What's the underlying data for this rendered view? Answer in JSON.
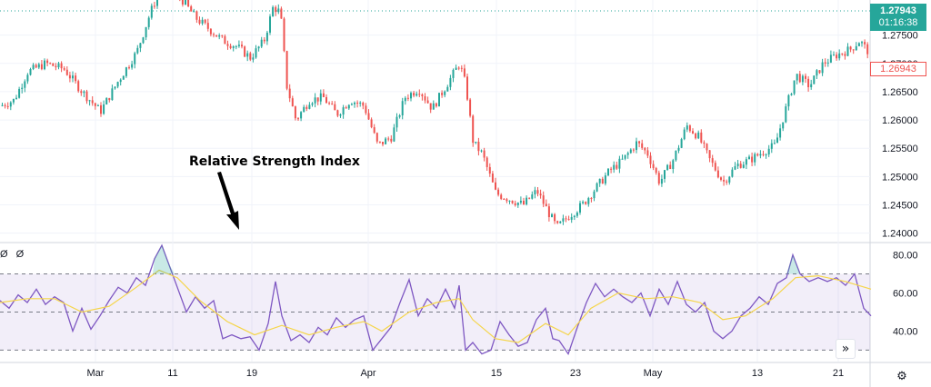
{
  "chart_data": [
    {
      "type": "candlestick",
      "pane": "price",
      "y_ticks": [
        "1.27500",
        "1.27000",
        "1.26500",
        "1.26000",
        "1.25500",
        "1.25000",
        "1.24500",
        "1.24000"
      ],
      "ylim": [
        1.2385,
        1.2812
      ],
      "x_ticks": [
        "Mar",
        "11",
        "19",
        "Apr",
        "15",
        "23",
        "May",
        "13",
        "21"
      ],
      "current_price": "1.27943",
      "countdown": "01:16:38",
      "secondary_price": "1.26943",
      "up_color": "#26a69a",
      "down_color": "#ef5350",
      "price_anchors": [
        [
          0,
          1.2625
        ],
        [
          15,
          1.2635
        ],
        [
          30,
          1.2685
        ],
        [
          50,
          1.27
        ],
        [
          70,
          1.269
        ],
        [
          90,
          1.265
        ],
        [
          110,
          1.2615
        ],
        [
          130,
          1.267
        ],
        [
          150,
          1.272
        ],
        [
          165,
          1.279
        ],
        [
          175,
          1.283
        ],
        [
          190,
          1.283
        ],
        [
          200,
          1.2812
        ],
        [
          215,
          1.278
        ],
        [
          230,
          1.276
        ],
        [
          245,
          1.274
        ],
        [
          260,
          1.273
        ],
        [
          275,
          1.271
        ],
        [
          290,
          1.274
        ],
        [
          300,
          1.28
        ],
        [
          308,
          1.279
        ],
        [
          315,
          1.266
        ],
        [
          325,
          1.26
        ],
        [
          340,
          1.2635
        ],
        [
          355,
          1.264
        ],
        [
          370,
          1.261
        ],
        [
          385,
          1.2635
        ],
        [
          400,
          1.2625
        ],
        [
          415,
          1.2555
        ],
        [
          430,
          1.257
        ],
        [
          445,
          1.264
        ],
        [
          460,
          1.2655
        ],
        [
          475,
          1.262
        ],
        [
          490,
          1.266
        ],
        [
          505,
          1.27
        ],
        [
          512,
          1.266
        ],
        [
          520,
          1.256
        ],
        [
          530,
          1.254
        ],
        [
          545,
          1.247
        ],
        [
          560,
          1.246
        ],
        [
          575,
          1.245
        ],
        [
          590,
          1.2475
        ],
        [
          605,
          1.243
        ],
        [
          612,
          1.241
        ],
        [
          625,
          1.243
        ],
        [
          640,
          1.245
        ],
        [
          655,
          1.248
        ],
        [
          670,
          1.251
        ],
        [
          685,
          1.253
        ],
        [
          700,
          1.256
        ],
        [
          712,
          1.254
        ],
        [
          725,
          1.249
        ],
        [
          740,
          1.253
        ],
        [
          755,
          1.259
        ],
        [
          768,
          1.257
        ],
        [
          780,
          1.253
        ],
        [
          795,
          1.249
        ],
        [
          810,
          1.252
        ],
        [
          825,
          1.253
        ],
        [
          840,
          1.2545
        ],
        [
          852,
          1.2555
        ],
        [
          862,
          1.261
        ],
        [
          875,
          1.268
        ],
        [
          890,
          1.266
        ],
        [
          905,
          1.27
        ],
        [
          920,
          1.2715
        ],
        [
          935,
          1.2725
        ],
        [
          945,
          1.274
        ],
        [
          955,
          1.272
        ]
      ]
    },
    {
      "type": "line",
      "pane": "rsi",
      "indicator_values": [
        "Ø",
        "Ø"
      ],
      "y_ticks": [
        "80.00",
        "60.00",
        "40.00"
      ],
      "ylim": [
        24,
        86
      ],
      "bands": [
        70,
        50,
        30
      ],
      "annotation": "Relative Strength Index",
      "series": [
        {
          "color": "#7e57c2",
          "points": [
            [
              0,
              56
            ],
            [
              10,
              52
            ],
            [
              20,
              59
            ],
            [
              30,
              55
            ],
            [
              40,
              62
            ],
            [
              50,
              54
            ],
            [
              60,
              58
            ],
            [
              70,
              55
            ],
            [
              80,
              40
            ],
            [
              90,
              52
            ],
            [
              100,
              41
            ],
            [
              110,
              48
            ],
            [
              120,
              56
            ],
            [
              130,
              63
            ],
            [
              140,
              60
            ],
            [
              150,
              68
            ],
            [
              160,
              64
            ],
            [
              170,
              78
            ],
            [
              178,
              85
            ],
            [
              185,
              76
            ],
            [
              195,
              63
            ],
            [
              205,
              50
            ],
            [
              215,
              58
            ],
            [
              225,
              52
            ],
            [
              235,
              56
            ],
            [
              245,
              36
            ],
            [
              255,
              38
            ],
            [
              265,
              36
            ],
            [
              275,
              37
            ],
            [
              285,
              30
            ],
            [
              295,
              44
            ],
            [
              303,
              66
            ],
            [
              310,
              48
            ],
            [
              320,
              35
            ],
            [
              330,
              38
            ],
            [
              340,
              34
            ],
            [
              350,
              42
            ],
            [
              360,
              38
            ],
            [
              370,
              47
            ],
            [
              380,
              42
            ],
            [
              390,
              46
            ],
            [
              400,
              48
            ],
            [
              410,
              30
            ],
            [
              420,
              36
            ],
            [
              430,
              42
            ],
            [
              440,
              55
            ],
            [
              450,
              67
            ],
            [
              460,
              48
            ],
            [
              470,
              57
            ],
            [
              480,
              52
            ],
            [
              490,
              62
            ],
            [
              500,
              52
            ],
            [
              505,
              64
            ],
            [
              512,
              30
            ],
            [
              520,
              34
            ],
            [
              530,
              28
            ],
            [
              540,
              30
            ],
            [
              550,
              45
            ],
            [
              560,
              38
            ],
            [
              570,
              32
            ],
            [
              580,
              34
            ],
            [
              590,
              46
            ],
            [
              600,
              52
            ],
            [
              608,
              36
            ],
            [
              615,
              35
            ],
            [
              625,
              28
            ],
            [
              635,
              42
            ],
            [
              645,
              55
            ],
            [
              655,
              65
            ],
            [
              665,
              58
            ],
            [
              675,
              62
            ],
            [
              685,
              58
            ],
            [
              695,
              55
            ],
            [
              705,
              60
            ],
            [
              715,
              48
            ],
            [
              725,
              62
            ],
            [
              735,
              54
            ],
            [
              745,
              66
            ],
            [
              755,
              54
            ],
            [
              765,
              50
            ],
            [
              775,
              55
            ],
            [
              785,
              40
            ],
            [
              795,
              36
            ],
            [
              805,
              40
            ],
            [
              815,
              48
            ],
            [
              825,
              52
            ],
            [
              835,
              58
            ],
            [
              845,
              54
            ],
            [
              855,
              65
            ],
            [
              865,
              68
            ],
            [
              872,
              80
            ],
            [
              880,
              70
            ],
            [
              890,
              66
            ],
            [
              900,
              68
            ],
            [
              910,
              66
            ],
            [
              920,
              68
            ],
            [
              930,
              64
            ],
            [
              940,
              70
            ],
            [
              950,
              52
            ],
            [
              958,
              48
            ]
          ]
        },
        {
          "color": "#f5d54a",
          "points": [
            [
              0,
              55
            ],
            [
              30,
              57
            ],
            [
              60,
              57
            ],
            [
              90,
              50
            ],
            [
              120,
              53
            ],
            [
              150,
              63
            ],
            [
              175,
              72
            ],
            [
              195,
              68
            ],
            [
              220,
              56
            ],
            [
              250,
              45
            ],
            [
              280,
              38
            ],
            [
              310,
              43
            ],
            [
              340,
              38
            ],
            [
              370,
              42
            ],
            [
              400,
              45
            ],
            [
              420,
              40
            ],
            [
              450,
              50
            ],
            [
              480,
              55
            ],
            [
              505,
              57
            ],
            [
              520,
              46
            ],
            [
              545,
              36
            ],
            [
              570,
              34
            ],
            [
              600,
              44
            ],
            [
              625,
              38
            ],
            [
              650,
              52
            ],
            [
              680,
              60
            ],
            [
              710,
              57
            ],
            [
              740,
              58
            ],
            [
              770,
              55
            ],
            [
              795,
              46
            ],
            [
              820,
              48
            ],
            [
              850,
              57
            ],
            [
              875,
              68
            ],
            [
              900,
              69
            ],
            [
              930,
              66
            ],
            [
              958,
              62
            ]
          ]
        }
      ]
    }
  ],
  "ui": {
    "scroll_button_icon": "chevron-double-right-icon",
    "settings_icon": "gear-icon",
    "scroll_glyph": "»",
    "settings_glyph": "⚙"
  }
}
